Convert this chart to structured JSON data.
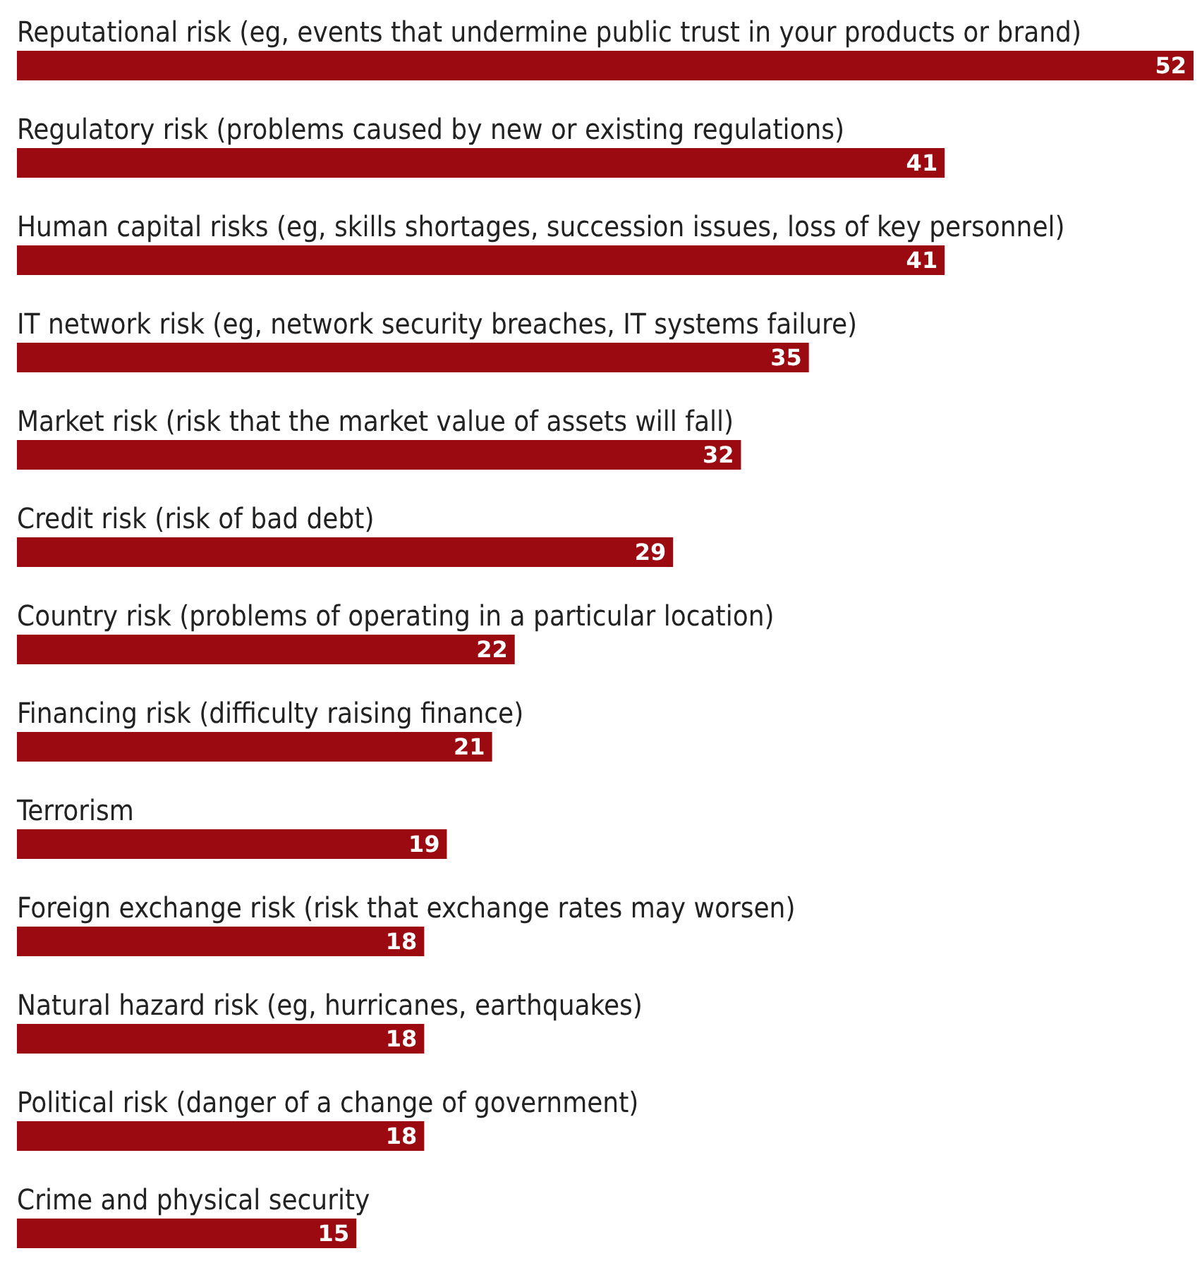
{
  "chart_data": {
    "type": "bar",
    "orientation": "horizontal",
    "categories": [
      "Reputational risk (eg, events that undermine public trust in your products or brand)",
      "Regulatory risk (problems caused by new or existing regulations)",
      "Human capital risks (eg, skills shortages, succession issues, loss of key personnel)",
      "IT network risk (eg, network security breaches, IT systems failure)",
      "Market risk (risk that the market value of assets will fall)",
      "Credit risk (risk of bad debt)",
      "Country risk (problems of operating in a particular location)",
      "Financing risk (difficulty raising finance)",
      "Terrorism",
      "Foreign exchange risk (risk that exchange rates may worsen)",
      "Natural hazard risk (eg, hurricanes, earthquakes)",
      "Political risk (danger of a change of government)",
      "Crime and physical security"
    ],
    "values": [
      52,
      41,
      41,
      35,
      32,
      29,
      22,
      21,
      19,
      18,
      18,
      18,
      15
    ],
    "color": "#9b0a10",
    "data_labels": true
  }
}
